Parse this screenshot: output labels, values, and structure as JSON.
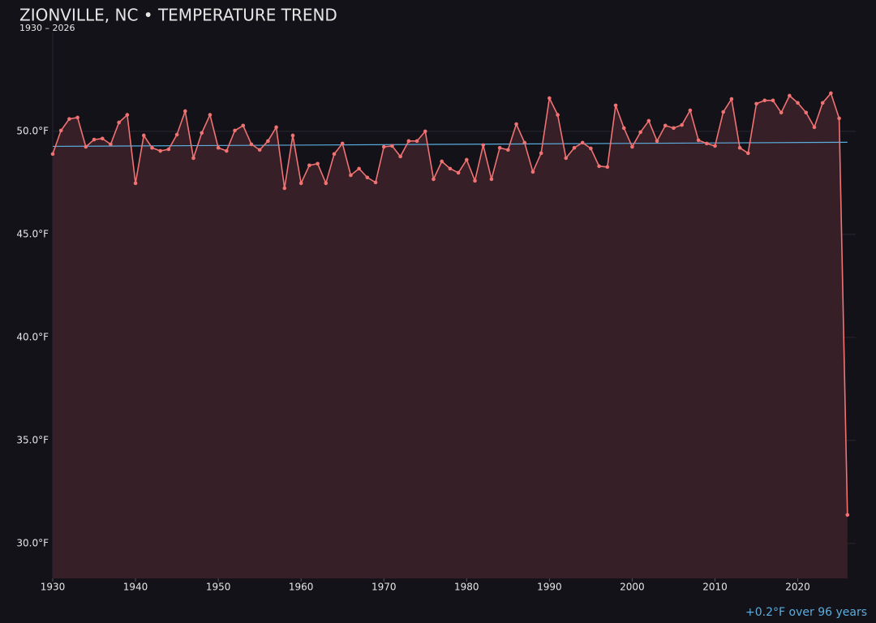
{
  "chart_data": {
    "type": "line",
    "title": "ZIONVILLE, NC • TEMPERATURE TREND",
    "subtitle": "1930 – 2026",
    "annotation": "+0.2°F over 96 years",
    "x": [
      1930,
      1931,
      1932,
      1933,
      1934,
      1935,
      1936,
      1937,
      1938,
      1939,
      1940,
      1941,
      1942,
      1943,
      1944,
      1945,
      1946,
      1947,
      1948,
      1949,
      1950,
      1951,
      1952,
      1953,
      1954,
      1955,
      1956,
      1957,
      1958,
      1959,
      1960,
      1961,
      1962,
      1963,
      1964,
      1965,
      1966,
      1967,
      1968,
      1969,
      1970,
      1971,
      1972,
      1973,
      1974,
      1975,
      1976,
      1977,
      1978,
      1979,
      1980,
      1981,
      1982,
      1983,
      1984,
      1985,
      1986,
      1987,
      1988,
      1989,
      1990,
      1991,
      1992,
      1993,
      1994,
      1995,
      1996,
      1997,
      1998,
      1999,
      2000,
      2001,
      2002,
      2003,
      2004,
      2005,
      2006,
      2007,
      2008,
      2009,
      2010,
      2011,
      2012,
      2013,
      2014,
      2015,
      2016,
      2017,
      2018,
      2019,
      2020,
      2021,
      2022,
      2023,
      2024,
      2025,
      2026
    ],
    "series": [
      {
        "color": "#f07272",
        "fill": "#361f26",
        "values": [
          48.9,
          50.04,
          50.6,
          50.67,
          49.25,
          49.6,
          49.65,
          49.37,
          50.43,
          50.8,
          47.48,
          49.8,
          49.2,
          49.05,
          49.13,
          49.84,
          50.98,
          48.7,
          49.92,
          50.8,
          49.2,
          49.05,
          50.04,
          50.28,
          49.37,
          49.1,
          49.53,
          50.2,
          47.24,
          49.8,
          47.48,
          48.35,
          48.43,
          47.48,
          48.9,
          49.41,
          47.87,
          48.19,
          47.76,
          47.52,
          49.25,
          49.29,
          48.78,
          49.53,
          49.53,
          50.0,
          47.68,
          48.54,
          48.19,
          47.99,
          48.62,
          47.6,
          49.33,
          47.68,
          49.2,
          49.1,
          50.35,
          49.45,
          48.03,
          48.94,
          51.61,
          50.8,
          48.7,
          49.2,
          49.45,
          49.17,
          48.31,
          48.27,
          51.26,
          50.16,
          49.25,
          49.96,
          50.51,
          49.53,
          50.28,
          50.16,
          50.31,
          51.02,
          49.57,
          49.41,
          49.29,
          50.94,
          51.57,
          49.2,
          48.94,
          51.34,
          51.5,
          51.5,
          50.91,
          51.73,
          51.38,
          50.91,
          50.2,
          51.38,
          51.85,
          50.63,
          31.38
        ]
      }
    ],
    "trend": {
      "color": "#5aaee0",
      "x": [
        1930,
        2026
      ],
      "values": [
        49.27,
        49.47
      ]
    },
    "xlim": [
      1930,
      2027
    ],
    "ylim": [
      28.3,
      54.8
    ],
    "xticks": [
      1930,
      1940,
      1950,
      1960,
      1970,
      1980,
      1990,
      2000,
      2010,
      2020
    ],
    "yticks": [
      {
        "value": 30,
        "label": "30.0°F"
      },
      {
        "value": 35,
        "label": "35.0°F"
      },
      {
        "value": 40,
        "label": "40.0°F"
      },
      {
        "value": 45,
        "label": "45.0°F"
      },
      {
        "value": 50,
        "label": "50.0°F"
      }
    ],
    "grid": true
  }
}
